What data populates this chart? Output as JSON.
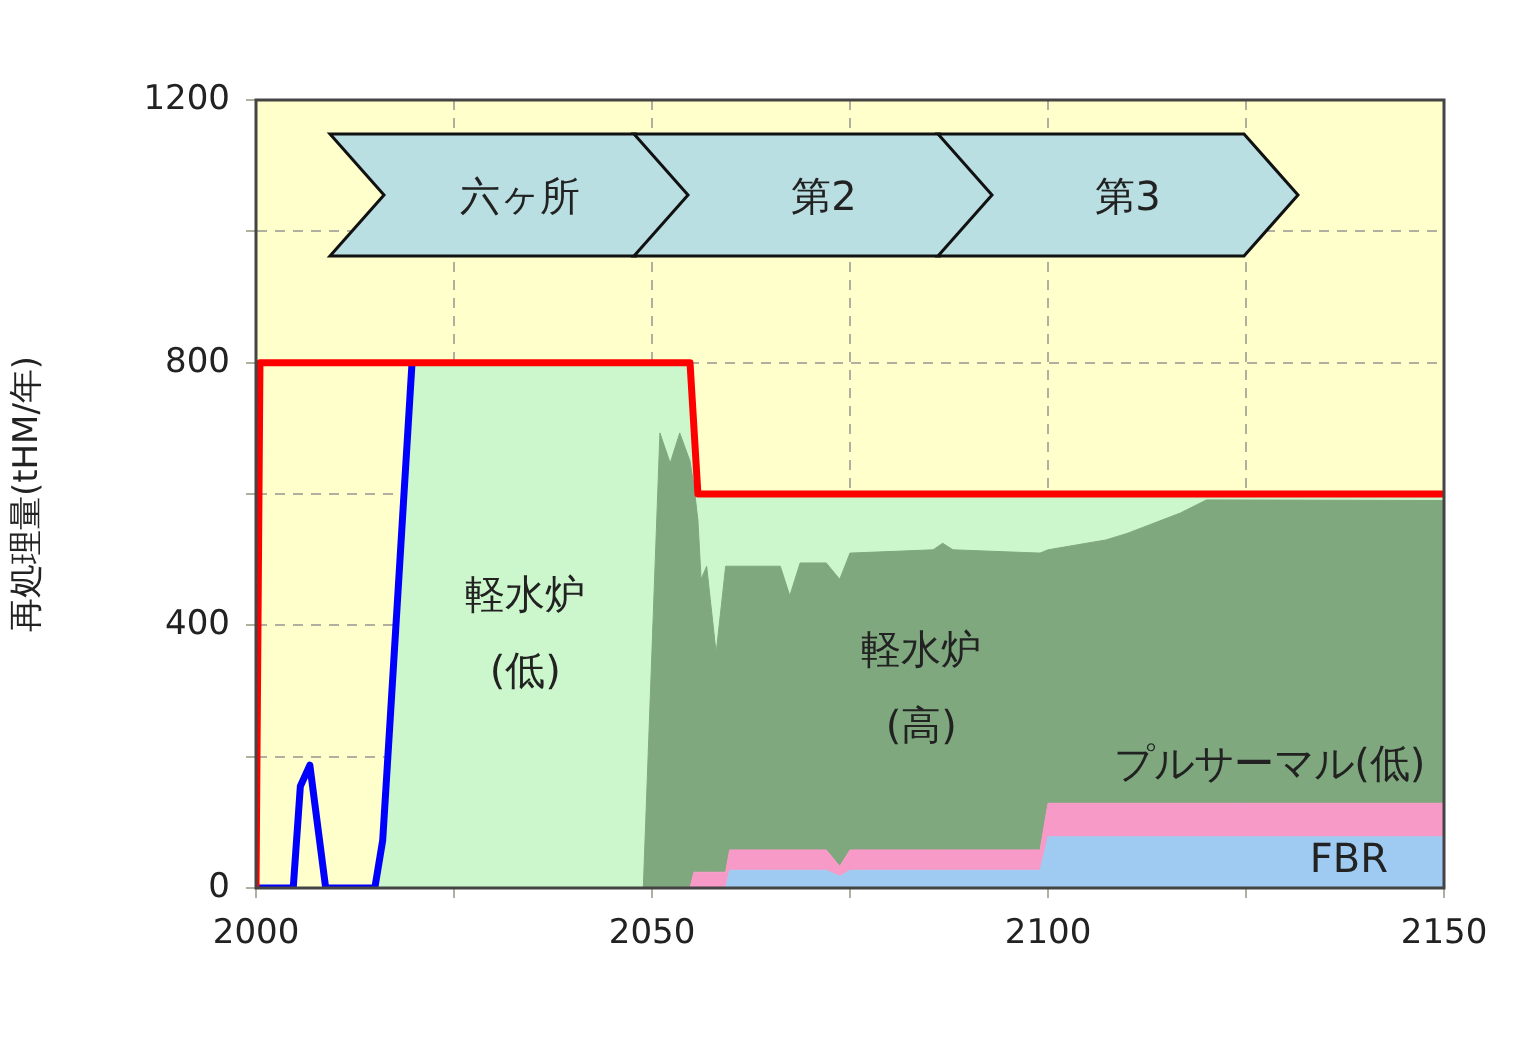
{
  "chart_data": {
    "type": "area",
    "ylabel": "再処理量(tHM/年)",
    "annotations": [
      "六ヶ所",
      "第2",
      "第3"
    ],
    "x": [
      2015,
      2016,
      2017.3,
      2019.7,
      2048.9,
      2051,
      2052.3,
      2053.5,
      2054.8,
      2055.3,
      2055.8,
      2056.2,
      2056.9,
      2058.1,
      2059.3,
      2059.8,
      2066.2,
      2067.4,
      2068.7,
      2072,
      2073.7,
      2075,
      2085.5,
      2086.7,
      2088,
      2099,
      2100,
      2107.3,
      2110,
      2116.7,
      2120,
      2150
    ],
    "stacked": true,
    "series": [
      {
        "name": "FBR",
        "color": "#9fcaf2",
        "values": [
          0,
          0,
          0,
          0,
          0,
          0,
          0,
          0,
          0,
          0,
          0,
          0,
          0,
          0,
          0,
          27,
          27,
          27,
          27,
          27,
          18,
          27,
          27,
          27,
          27,
          27,
          78,
          78,
          78,
          78,
          78,
          78
        ]
      },
      {
        "name": "プルサーマル(低)",
        "color": "#f79ac8",
        "values": [
          0,
          0,
          0,
          0,
          0,
          0,
          0,
          0,
          0,
          24,
          24,
          24,
          24,
          24,
          24,
          31,
          31,
          31,
          31,
          31,
          15,
          31,
          31,
          31,
          31,
          31,
          51,
          51,
          51,
          51,
          51,
          51
        ]
      },
      {
        "name": "軽水炉\n(高)",
        "color": "#7fa87f",
        "values": [
          0,
          0,
          0,
          0,
          0,
          693,
          647,
          693,
          650,
          588,
          536,
          446,
          466,
          334,
          466,
          432,
          432,
          387,
          437,
          437,
          437,
          452,
          457,
          467,
          457,
          452,
          386,
          401,
          411,
          442,
          462,
          461
        ]
      },
      {
        "name": "軽水炉\n(低)",
        "color": "#ccf7cc",
        "values": [
          0,
          73,
          327,
          800,
          800,
          107,
          153,
          107,
          150,
          88,
          40,
          130,
          110,
          242,
          110,
          110,
          110,
          155,
          105,
          105,
          130,
          90,
          85,
          75,
          85,
          90,
          85,
          70,
          60,
          29,
          9,
          10
        ]
      },
      {
        "type": "line",
        "color": "#ff0000",
        "x": [
          2000,
          2000.5,
          2054.8,
          2055.8,
          2150
        ],
        "values": [
          0,
          800,
          800,
          600,
          600
        ]
      },
      {
        "type": "line",
        "color": "#0000ff",
        "x": [
          2000,
          2004.7,
          2005.6,
          2006.8,
          2008.8,
          2015,
          2016,
          2017.3,
          2019.7
        ],
        "values": [
          0,
          0,
          155,
          187,
          0,
          0,
          73,
          327,
          800
        ]
      }
    ],
    "xlim": [
      2000,
      2150
    ],
    "xticks": [
      2000,
      {
        "value": 2025,
        "label": null
      },
      2050,
      {
        "value": 2075,
        "label": null
      },
      2100,
      {
        "value": 2125,
        "label": null
      },
      2150
    ],
    "ylim": [
      0,
      1200
    ],
    "yticks": [
      0,
      {
        "value": 200,
        "label": null
      },
      400,
      {
        "value": 600,
        "label": null
      },
      800,
      {
        "value": 1000,
        "label": null
      },
      1200
    ],
    "grid": true,
    "legend": false,
    "marker": "none",
    "line_style": "solid"
  }
}
